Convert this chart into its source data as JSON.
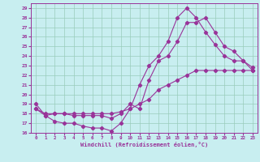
{
  "xlabel": "Windchill (Refroidissement éolien,°C)",
  "bg_color": "#c8eef0",
  "line_color": "#993399",
  "grid_color": "#99ccbb",
  "xlim": [
    -0.5,
    23.5
  ],
  "ylim": [
    16,
    29.5
  ],
  "yticks": [
    16,
    17,
    18,
    19,
    20,
    21,
    22,
    23,
    24,
    25,
    26,
    27,
    28,
    29
  ],
  "xticks": [
    0,
    1,
    2,
    3,
    4,
    5,
    6,
    7,
    8,
    9,
    10,
    11,
    12,
    13,
    14,
    15,
    16,
    17,
    18,
    19,
    20,
    21,
    22,
    23
  ],
  "curve1_x": [
    0,
    1,
    2,
    3,
    4,
    5,
    6,
    7,
    8,
    9,
    10,
    11,
    12,
    13,
    14,
    15,
    16,
    17,
    18,
    19,
    20,
    21,
    22,
    23
  ],
  "curve1_y": [
    19.0,
    17.8,
    17.2,
    17.0,
    17.0,
    16.7,
    16.5,
    16.5,
    16.2,
    17.0,
    18.5,
    21.0,
    23.0,
    24.0,
    25.5,
    28.0,
    29.0,
    28.0,
    26.5,
    25.2,
    24.0,
    23.5,
    23.5,
    22.5
  ],
  "curve2_x": [
    0,
    1,
    2,
    3,
    4,
    5,
    6,
    7,
    8,
    9,
    10,
    11,
    12,
    13,
    14,
    15,
    16,
    17,
    18,
    19,
    20,
    21,
    22,
    23
  ],
  "curve2_y": [
    18.5,
    17.8,
    18.0,
    18.0,
    17.8,
    17.8,
    17.8,
    17.8,
    17.5,
    18.0,
    19.0,
    18.5,
    21.5,
    23.5,
    24.0,
    25.5,
    27.5,
    27.5,
    28.0,
    26.5,
    25.0,
    24.5,
    23.5,
    22.8
  ],
  "curve3_x": [
    0,
    1,
    2,
    3,
    4,
    5,
    6,
    7,
    8,
    9,
    10,
    11,
    12,
    13,
    14,
    15,
    16,
    17,
    18,
    19,
    20,
    21,
    22,
    23
  ],
  "curve3_y": [
    18.5,
    18.0,
    18.0,
    18.0,
    18.0,
    18.0,
    18.0,
    18.0,
    18.0,
    18.2,
    18.5,
    19.0,
    19.5,
    20.5,
    21.0,
    21.5,
    22.0,
    22.5,
    22.5,
    22.5,
    22.5,
    22.5,
    22.5,
    22.5
  ]
}
